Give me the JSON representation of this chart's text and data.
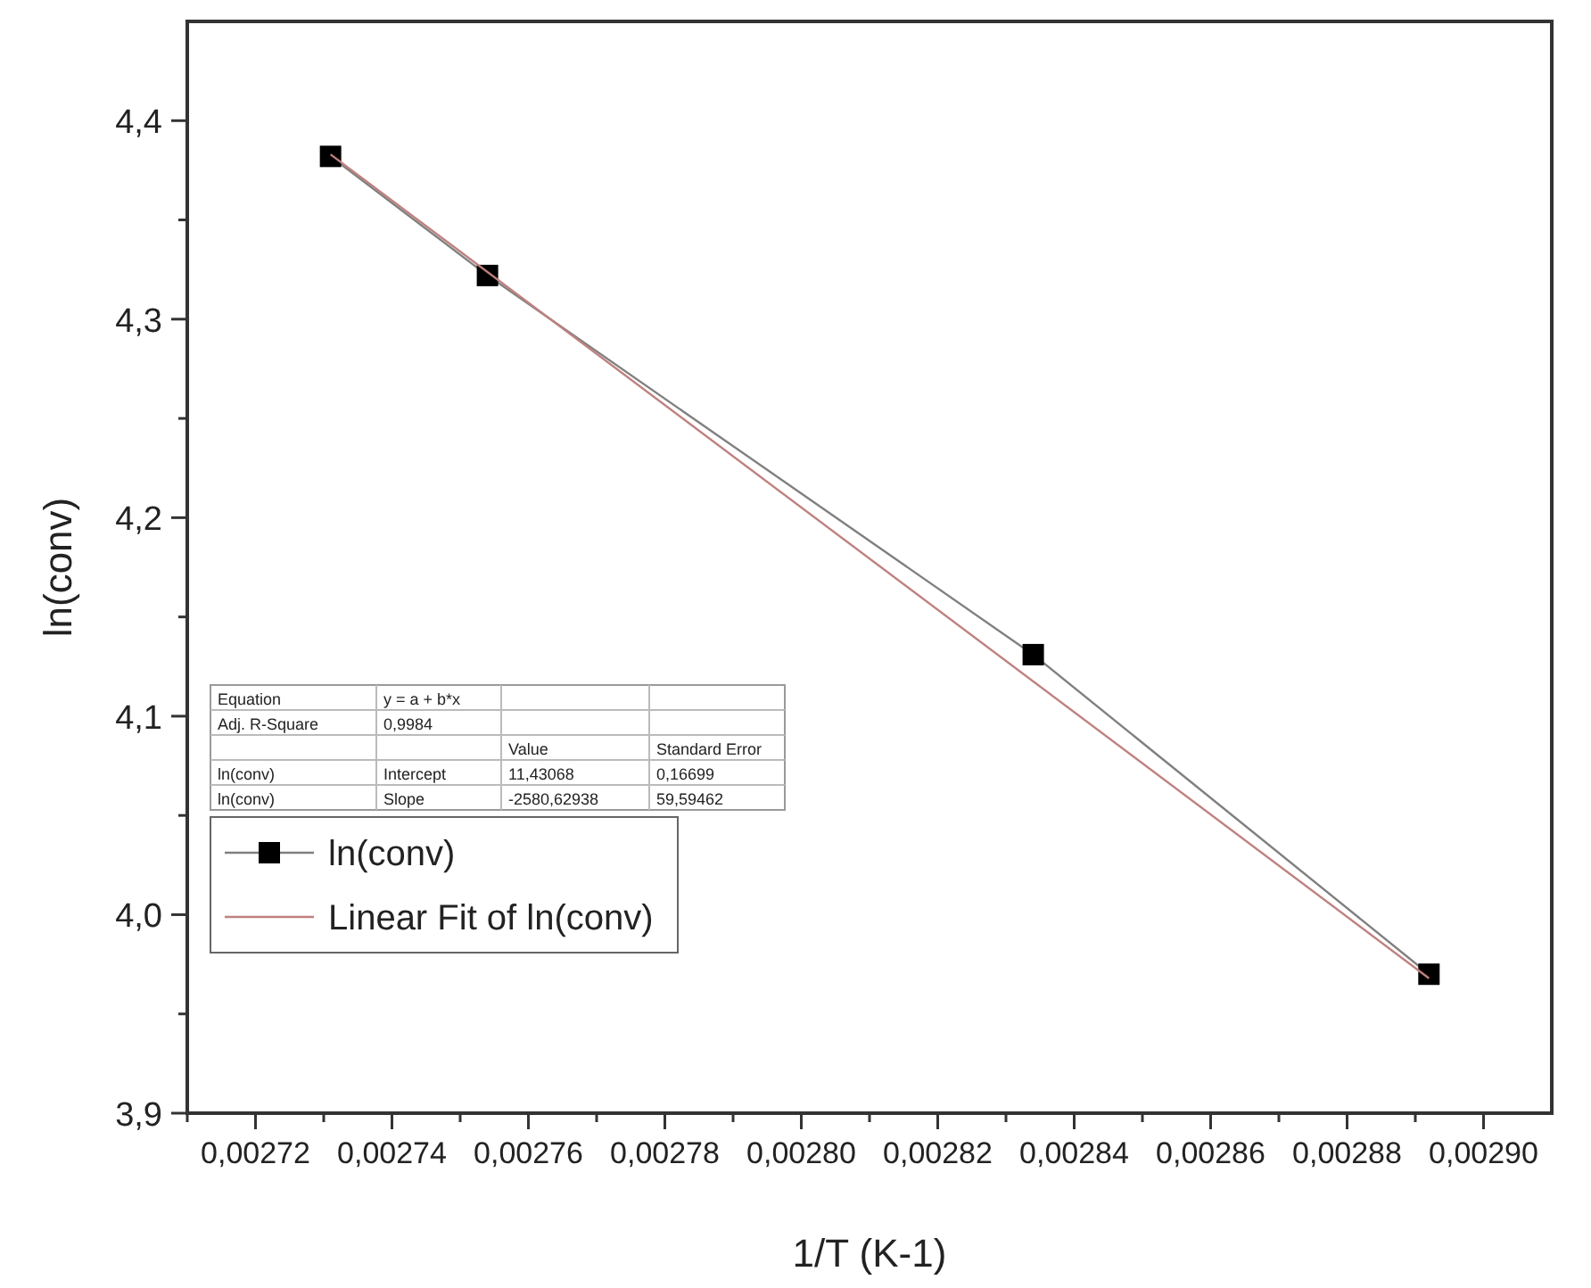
{
  "chart_data": {
    "type": "line",
    "xlabel": "1/T (K-1)",
    "ylabel": "ln(conv)",
    "xlim": [
      0.00271,
      0.00291
    ],
    "ylim": [
      3.9,
      4.45
    ],
    "xticks": [
      {
        "value": 0.00271,
        "label": null
      },
      {
        "value": 0.00272,
        "label": "0,00272"
      },
      {
        "value": 0.00273,
        "label": null
      },
      {
        "value": 0.00274,
        "label": "0,00274"
      },
      {
        "value": 0.00275,
        "label": null
      },
      {
        "value": 0.00276,
        "label": "0,00276"
      },
      {
        "value": 0.00277,
        "label": null
      },
      {
        "value": 0.00278,
        "label": "0,00278"
      },
      {
        "value": 0.00279,
        "label": null
      },
      {
        "value": 0.0028,
        "label": "0,00280"
      },
      {
        "value": 0.00281,
        "label": null
      },
      {
        "value": 0.00282,
        "label": "0,00282"
      },
      {
        "value": 0.00283,
        "label": null
      },
      {
        "value": 0.00284,
        "label": "0,00284"
      },
      {
        "value": 0.00285,
        "label": null
      },
      {
        "value": 0.00286,
        "label": "0,00286"
      },
      {
        "value": 0.00287,
        "label": null
      },
      {
        "value": 0.00288,
        "label": "0,00288"
      },
      {
        "value": 0.00289,
        "label": null
      },
      {
        "value": 0.0029,
        "label": "0,00290"
      }
    ],
    "yticks": [
      {
        "value": 3.9,
        "label": "3,9"
      },
      {
        "value": 3.95,
        "label": null
      },
      {
        "value": 4.0,
        "label": "4,0"
      },
      {
        "value": 4.05,
        "label": null
      },
      {
        "value": 4.1,
        "label": "4,1"
      },
      {
        "value": 4.15,
        "label": null
      },
      {
        "value": 4.2,
        "label": "4,2"
      },
      {
        "value": 4.25,
        "label": null
      },
      {
        "value": 4.3,
        "label": "4,3"
      },
      {
        "value": 4.35,
        "label": null
      },
      {
        "value": 4.4,
        "label": "4,4"
      }
    ],
    "series": [
      {
        "name": "ln(conv)",
        "color": "#000000",
        "x": [
          0.002731,
          0.002754,
          0.002834,
          0.002892
        ],
        "values": [
          4.382,
          4.322,
          4.131,
          3.97
        ],
        "marker": "square",
        "line_style": "solid"
      },
      {
        "name": "Linear Fit of ln(conv)",
        "color": "#c08080",
        "x": [
          0.002731,
          0.002892
        ],
        "values": [
          4.383,
          3.968
        ],
        "marker": "none",
        "line_style": "solid"
      }
    ],
    "legend": "bottom left",
    "grid": false,
    "annotations": [
      "Equation",
      "y = a + b*x",
      "Adj. R-Square",
      "0,9984",
      "Value",
      "Standard Error",
      "ln(conv)",
      "Intercept",
      "11,43068",
      "0,16699",
      "ln(conv)",
      "Slope",
      "-2580,62938",
      "59,59462"
    ]
  }
}
